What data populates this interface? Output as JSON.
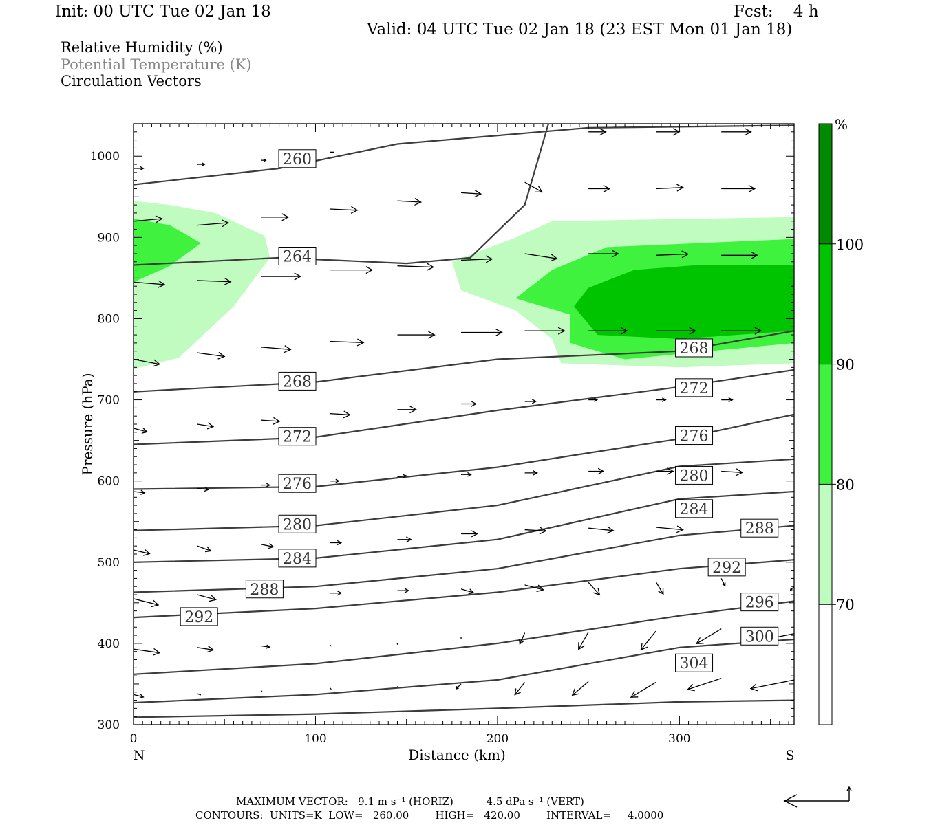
{
  "header": {
    "init": "Init: 00 UTC Tue 02 Jan 18",
    "fcst": "Fcst:    4 h",
    "valid": "Valid: 04 UTC Tue 02 Jan 18 (23 EST Mon 01 Jan 18)"
  },
  "fields": {
    "rh": "Relative Humidity (%)",
    "theta": "Potential Temperature (K)",
    "vectors": "Circulation Vectors"
  },
  "footer": {
    "maxvec": "MAXIMUM VECTOR:   9.1 m s⁻¹ (HORIZ)          4.5 dPa s⁻¹ (VERT)",
    "contours": "CONTOURS:  UNITS=K  LOW=   260.00        HIGH=   420.00        INTERVAL=     4.0000"
  },
  "chart_data": {
    "type": "cross-section",
    "xlabel": "Distance (km)",
    "ylabel": "Pressure (hPa)",
    "xlim": [
      0,
      363
    ],
    "ylim": [
      1040,
      300
    ],
    "x_ticks": [
      0,
      100,
      200,
      300
    ],
    "y_ticks": [
      300,
      400,
      500,
      600,
      700,
      800,
      900,
      1000
    ],
    "left_end_label": "N",
    "right_end_label": "S",
    "colorbar": {
      "unit": "%",
      "levels": [
        70,
        80,
        90,
        100
      ],
      "colors": [
        "#ffffff",
        "#c0fcc0",
        "#3ef23e",
        "#00c400",
        "#008a00"
      ]
    },
    "theta_contours": [
      {
        "label": "304",
        "points": [
          [
            0,
            309
          ],
          [
            100,
            313
          ],
          [
            200,
            320
          ],
          [
            300,
            328
          ],
          [
            363,
            330
          ]
        ],
        "label_at": [
          308,
          376
        ]
      },
      {
        "label": "300",
        "points": [
          [
            0,
            327
          ],
          [
            100,
            337
          ],
          [
            200,
            355
          ],
          [
            300,
            395
          ],
          [
            363,
            405
          ]
        ],
        "label_at": [
          344,
          409
        ]
      },
      {
        "label": "296",
        "points": [
          [
            0,
            362
          ],
          [
            100,
            375
          ],
          [
            200,
            400
          ],
          [
            300,
            434
          ],
          [
            363,
            452
          ]
        ],
        "label_at": [
          344,
          451
        ]
      },
      {
        "label": "292",
        "points": [
          [
            0,
            432
          ],
          [
            100,
            443
          ],
          [
            200,
            463
          ],
          [
            300,
            492
          ],
          [
            363,
            503
          ]
        ],
        "label_at": [
          36,
          433
        ]
      },
      {
        "label": "292",
        "points": [],
        "label_at": [
          326,
          494
        ]
      },
      {
        "label": "288",
        "points": [
          [
            0,
            463
          ],
          [
            100,
            470
          ],
          [
            200,
            492
          ],
          [
            300,
            533
          ],
          [
            363,
            545
          ]
        ],
        "label_at": [
          72,
          467
        ]
      },
      {
        "label": "288",
        "points": [],
        "label_at": [
          344,
          542
        ]
      },
      {
        "label": "284",
        "points": [
          [
            0,
            500
          ],
          [
            100,
            505
          ],
          [
            200,
            528
          ],
          [
            300,
            578
          ],
          [
            363,
            587
          ]
        ],
        "label_at": [
          90,
          505
        ]
      },
      {
        "label": "284",
        "points": [],
        "label_at": [
          308,
          566
        ]
      },
      {
        "label": "280",
        "points": [
          [
            0,
            539
          ],
          [
            100,
            545
          ],
          [
            200,
            570
          ],
          [
            300,
            618
          ],
          [
            363,
            627
          ]
        ],
        "label_at": [
          90,
          547
        ]
      },
      {
        "label": "280",
        "points": [],
        "label_at": [
          308,
          607
        ]
      },
      {
        "label": "276",
        "points": [
          [
            0,
            590
          ],
          [
            100,
            593
          ],
          [
            200,
            617
          ],
          [
            300,
            652
          ],
          [
            363,
            682
          ]
        ],
        "label_at": [
          90,
          597
        ]
      },
      {
        "label": "276",
        "points": [],
        "label_at": [
          308,
          656
        ]
      },
      {
        "label": "272",
        "points": [
          [
            0,
            645
          ],
          [
            100,
            654
          ],
          [
            200,
            687
          ],
          [
            300,
            716
          ],
          [
            363,
            737
          ]
        ],
        "label_at": [
          90,
          655
        ]
      },
      {
        "label": "272",
        "points": [],
        "label_at": [
          308,
          715
        ]
      },
      {
        "label": "268",
        "points": [
          [
            0,
            710
          ],
          [
            100,
            722
          ],
          [
            200,
            750
          ],
          [
            300,
            760
          ],
          [
            363,
            785
          ]
        ],
        "label_at": [
          90,
          723
        ]
      },
      {
        "label": "268",
        "points": [],
        "label_at": [
          308,
          764
        ]
      },
      {
        "label": "264",
        "points": [
          [
            0,
            866
          ],
          [
            80,
            875
          ],
          [
            150,
            868
          ],
          [
            185,
            875
          ],
          [
            215,
            940
          ],
          [
            228,
            1040
          ]
        ],
        "label_at": [
          90,
          877
        ]
      },
      {
        "label": "260",
        "points": [
          [
            0,
            965
          ],
          [
            80,
            985
          ],
          [
            145,
            1015
          ],
          [
            250,
            1035
          ],
          [
            363,
            1038
          ]
        ],
        "label_at": [
          90,
          997
        ]
      }
    ],
    "rh_zones": [
      {
        "level": 70,
        "points": [
          [
            0,
            738
          ],
          [
            25,
            752
          ],
          [
            55,
            815
          ],
          [
            75,
            875
          ],
          [
            72,
            902
          ],
          [
            45,
            930
          ],
          [
            20,
            940
          ],
          [
            0,
            945
          ]
        ]
      },
      {
        "level": 80,
        "points": [
          [
            0,
            845
          ],
          [
            20,
            865
          ],
          [
            37,
            893
          ],
          [
            20,
            915
          ],
          [
            0,
            923
          ]
        ]
      },
      {
        "level": 70,
        "points": [
          [
            235,
            745
          ],
          [
            300,
            740
          ],
          [
            363,
            745
          ],
          [
            363,
            925
          ],
          [
            230,
            920
          ],
          [
            210,
            900
          ],
          [
            175,
            870
          ],
          [
            180,
            835
          ],
          [
            210,
            810
          ],
          [
            230,
            775
          ]
        ]
      },
      {
        "level": 80,
        "points": [
          [
            240,
            770
          ],
          [
            270,
            750
          ],
          [
            363,
            770
          ],
          [
            363,
            898
          ],
          [
            260,
            888
          ],
          [
            230,
            860
          ],
          [
            210,
            825
          ],
          [
            240,
            805
          ]
        ]
      },
      {
        "level": 90,
        "points": [
          [
            255,
            780
          ],
          [
            300,
            775
          ],
          [
            363,
            785
          ],
          [
            363,
            866
          ],
          [
            310,
            866
          ],
          [
            275,
            860
          ],
          [
            250,
            838
          ],
          [
            242,
            815
          ]
        ]
      }
    ],
    "vectors": [
      {
        "x": 0,
        "p": 337,
        "u": 8,
        "v": 2
      },
      {
        "x": 35,
        "p": 338,
        "u": 3,
        "v": 1
      },
      {
        "x": 70,
        "p": 342,
        "u": 1,
        "v": 1
      },
      {
        "x": 108,
        "p": 345,
        "u": 1,
        "v": 1
      },
      {
        "x": 145,
        "p": 347,
        "u": 1,
        "v": 1
      },
      {
        "x": 180,
        "p": 350,
        "u": -4,
        "v": 4
      },
      {
        "x": 215,
        "p": 352,
        "u": -8,
        "v": 10
      },
      {
        "x": 250,
        "p": 353,
        "u": -13,
        "v": 11
      },
      {
        "x": 287,
        "p": 352,
        "u": -20,
        "v": 12
      },
      {
        "x": 323,
        "p": 357,
        "u": -27,
        "v": 9
      },
      {
        "x": 363,
        "p": 355,
        "u": -35,
        "v": 7
      },
      {
        "x": 0,
        "p": 393,
        "u": 21,
        "v": 3
      },
      {
        "x": 35,
        "p": 395,
        "u": 13,
        "v": 2
      },
      {
        "x": 70,
        "p": 397,
        "u": 7,
        "v": 1
      },
      {
        "x": 108,
        "p": 398,
        "u": 1,
        "v": 1
      },
      {
        "x": 145,
        "p": 400,
        "u": 0,
        "v": 1
      },
      {
        "x": 180,
        "p": 408,
        "u": 0,
        "v": 2
      },
      {
        "x": 215,
        "p": 413,
        "u": -4,
        "v": 9
      },
      {
        "x": 250,
        "p": 414,
        "u": -8,
        "v": 14
      },
      {
        "x": 287,
        "p": 415,
        "u": -12,
        "v": 15
      },
      {
        "x": 323,
        "p": 418,
        "u": -20,
        "v": 12
      },
      {
        "x": 363,
        "p": 412,
        "u": -25,
        "v": 5
      },
      {
        "x": 0,
        "p": 455,
        "u": 20,
        "v": 5
      },
      {
        "x": 35,
        "p": 460,
        "u": 15,
        "v": 4
      },
      {
        "x": 70,
        "p": 460,
        "u": 11,
        "v": 1
      },
      {
        "x": 108,
        "p": 462,
        "u": 9,
        "v": 0
      },
      {
        "x": 145,
        "p": 465,
        "u": 9,
        "v": 0
      },
      {
        "x": 180,
        "p": 467,
        "u": 10,
        "v": 3
      },
      {
        "x": 215,
        "p": 472,
        "u": 15,
        "v": 4
      },
      {
        "x": 250,
        "p": 475,
        "u": 9,
        "v": 10
      },
      {
        "x": 287,
        "p": 476,
        "u": 6,
        "v": 10
      },
      {
        "x": 323,
        "p": 480,
        "u": 3,
        "v": 6
      },
      {
        "x": 363,
        "p": 470,
        "u": -3,
        "v": 3
      },
      {
        "x": 0,
        "p": 515,
        "u": 13,
        "v": 3
      },
      {
        "x": 35,
        "p": 520,
        "u": 11,
        "v": 4
      },
      {
        "x": 70,
        "p": 522,
        "u": 10,
        "v": 2
      },
      {
        "x": 108,
        "p": 524,
        "u": 9,
        "v": 0
      },
      {
        "x": 145,
        "p": 528,
        "u": 11,
        "v": 0
      },
      {
        "x": 180,
        "p": 535,
        "u": 13,
        "v": 0
      },
      {
        "x": 215,
        "p": 540,
        "u": 17,
        "v": 1
      },
      {
        "x": 250,
        "p": 542,
        "u": 20,
        "v": 2
      },
      {
        "x": 287,
        "p": 543,
        "u": 22,
        "v": 2
      },
      {
        "x": 0,
        "p": 587,
        "u": 9,
        "v": 1
      },
      {
        "x": 35,
        "p": 591,
        "u": 9,
        "v": 1
      },
      {
        "x": 70,
        "p": 595,
        "u": 7,
        "v": 0
      },
      {
        "x": 108,
        "p": 600,
        "u": 7,
        "v": 0
      },
      {
        "x": 145,
        "p": 605,
        "u": 7,
        "v": -1
      },
      {
        "x": 180,
        "p": 608,
        "u": 8,
        "v": 0
      },
      {
        "x": 215,
        "p": 610,
        "u": 10,
        "v": 0
      },
      {
        "x": 250,
        "p": 612,
        "u": 12,
        "v": 0
      },
      {
        "x": 287,
        "p": 612,
        "u": 14,
        "v": 0
      },
      {
        "x": 323,
        "p": 612,
        "u": 17,
        "v": 1
      },
      {
        "x": 0,
        "p": 665,
        "u": 11,
        "v": 3
      },
      {
        "x": 35,
        "p": 670,
        "u": 13,
        "v": 2
      },
      {
        "x": 70,
        "p": 675,
        "u": 15,
        "v": 1
      },
      {
        "x": 108,
        "p": 683,
        "u": 16,
        "v": 1
      },
      {
        "x": 145,
        "p": 688,
        "u": 15,
        "v": 0
      },
      {
        "x": 180,
        "p": 695,
        "u": 12,
        "v": 0
      },
      {
        "x": 215,
        "p": 698,
        "u": 9,
        "v": 0
      },
      {
        "x": 250,
        "p": 700,
        "u": 7,
        "v": 0
      },
      {
        "x": 287,
        "p": 700,
        "u": 8,
        "v": 0
      },
      {
        "x": 323,
        "p": 700,
        "u": 9,
        "v": 0
      },
      {
        "x": 0,
        "p": 750,
        "u": 21,
        "v": 4
      },
      {
        "x": 35,
        "p": 758,
        "u": 22,
        "v": 3
      },
      {
        "x": 70,
        "p": 765,
        "u": 24,
        "v": 2
      },
      {
        "x": 108,
        "p": 772,
        "u": 27,
        "v": 1
      },
      {
        "x": 145,
        "p": 780,
        "u": 30,
        "v": 0
      },
      {
        "x": 180,
        "p": 783,
        "u": 33,
        "v": 0
      },
      {
        "x": 215,
        "p": 785,
        "u": 32,
        "v": 0
      },
      {
        "x": 250,
        "p": 785,
        "u": 31,
        "v": 0
      },
      {
        "x": 287,
        "p": 785,
        "u": 32,
        "v": 0
      },
      {
        "x": 323,
        "p": 785,
        "u": 32,
        "v": 0
      },
      {
        "x": 363,
        "p": 785,
        "u": 33,
        "v": 0
      },
      {
        "x": 0,
        "p": 845,
        "u": 25,
        "v": 2
      },
      {
        "x": 35,
        "p": 847,
        "u": 27,
        "v": 1
      },
      {
        "x": 70,
        "p": 852,
        "u": 32,
        "v": 0
      },
      {
        "x": 108,
        "p": 860,
        "u": 34,
        "v": 0
      },
      {
        "x": 145,
        "p": 865,
        "u": 29,
        "v": 1
      },
      {
        "x": 180,
        "p": 872,
        "u": 25,
        "v": -1
      },
      {
        "x": 215,
        "p": 880,
        "u": 26,
        "v": 4
      },
      {
        "x": 250,
        "p": 880,
        "u": 24,
        "v": 0
      },
      {
        "x": 287,
        "p": 878,
        "u": 26,
        "v": -1
      },
      {
        "x": 323,
        "p": 878,
        "u": 29,
        "v": 0
      },
      {
        "x": 0,
        "p": 920,
        "u": 23,
        "v": -2
      },
      {
        "x": 35,
        "p": 915,
        "u": 25,
        "v": -2
      },
      {
        "x": 70,
        "p": 925,
        "u": 22,
        "v": 0
      },
      {
        "x": 108,
        "p": 935,
        "u": 22,
        "v": 1
      },
      {
        "x": 145,
        "p": 945,
        "u": 19,
        "v": 1
      },
      {
        "x": 180,
        "p": 955,
        "u": 16,
        "v": 1
      },
      {
        "x": 215,
        "p": 968,
        "u": 14,
        "v": 8
      },
      {
        "x": 250,
        "p": 960,
        "u": 17,
        "v": 0
      },
      {
        "x": 287,
        "p": 960,
        "u": 22,
        "v": -1
      },
      {
        "x": 323,
        "p": 960,
        "u": 27,
        "v": 0
      },
      {
        "x": 0,
        "p": 985,
        "u": 8,
        "v": 0
      },
      {
        "x": 35,
        "p": 990,
        "u": 6,
        "v": 0
      },
      {
        "x": 70,
        "p": 995,
        "u": 4,
        "v": 0
      },
      {
        "x": 108,
        "p": 1005,
        "u": 3,
        "v": 0
      },
      {
        "x": 250,
        "p": 1030,
        "u": 14,
        "v": 0
      },
      {
        "x": 287,
        "p": 1030,
        "u": 19,
        "v": 0
      },
      {
        "x": 323,
        "p": 1030,
        "u": 24,
        "v": 0
      }
    ]
  }
}
